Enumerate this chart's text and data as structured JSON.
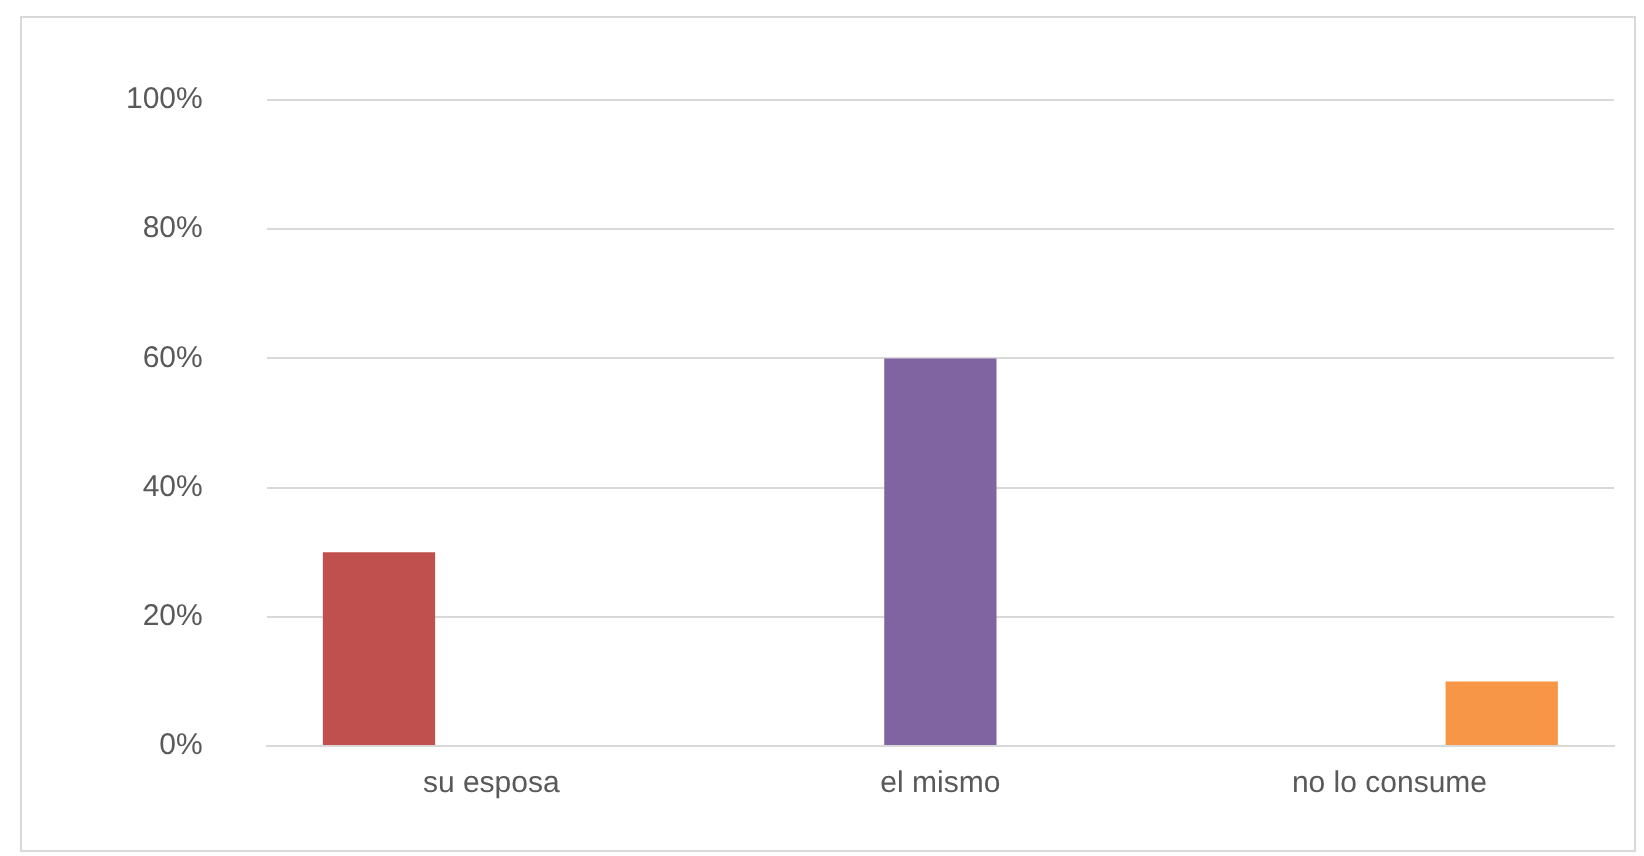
{
  "chart_data": {
    "type": "bar",
    "categories": [
      "su esposa",
      "el mismo",
      "no lo consume"
    ],
    "series": [
      {
        "color": "#c0504d",
        "values": [
          30,
          null,
          null
        ]
      },
      {
        "color": "#8064a2",
        "values": [
          null,
          60,
          null
        ]
      },
      {
        "color": "#f79646",
        "values": [
          null,
          null,
          10
        ]
      }
    ],
    "ylim": [
      0,
      100
    ],
    "yticks": [
      {
        "value": 0,
        "label": "0%"
      },
      {
        "value": 20,
        "label": "20%"
      },
      {
        "value": 40,
        "label": "40%"
      },
      {
        "value": 60,
        "label": "60%"
      },
      {
        "value": 80,
        "label": "80%"
      },
      {
        "value": 100,
        "label": "100%"
      }
    ],
    "grid": "y",
    "legend": false
  }
}
